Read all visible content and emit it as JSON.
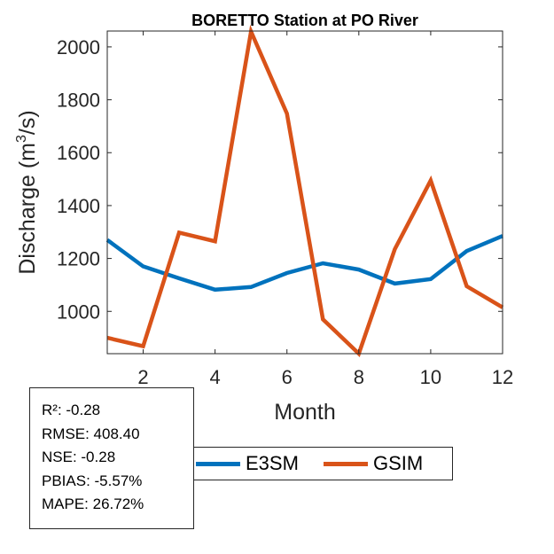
{
  "chart_data": {
    "type": "line",
    "title": "BORETTO  Station at  PO  River",
    "xlabel": "Month",
    "ylabel_base": "Discharge (m",
    "ylabel_sup": "3",
    "ylabel_tail": "/s)",
    "xlim": [
      1,
      12
    ],
    "ylim": [
      840,
      2060
    ],
    "xticks": [
      2,
      4,
      6,
      8,
      10,
      12
    ],
    "yticks": [
      1000,
      1200,
      1400,
      1600,
      1800,
      2000
    ],
    "x": [
      1,
      2,
      3,
      4,
      5,
      6,
      7,
      8,
      9,
      10,
      11,
      12
    ],
    "series": [
      {
        "name": "E3SM",
        "color": "#0072BD",
        "values": [
          1270,
          1170,
          1125,
          1082,
          1092,
          1145,
          1182,
          1158,
          1105,
          1122,
          1228,
          1285
        ]
      },
      {
        "name": "GSIM",
        "color": "#D95319",
        "values": [
          900,
          868,
          1298,
          1265,
          2058,
          1748,
          970,
          840,
          1235,
          1495,
          1095,
          1015
        ]
      }
    ]
  },
  "stats": [
    "R²: -0.28",
    "RMSE: 408.40",
    "NSE: -0.28",
    "PBIAS: -5.57%",
    "MAPE: 26.72%"
  ]
}
